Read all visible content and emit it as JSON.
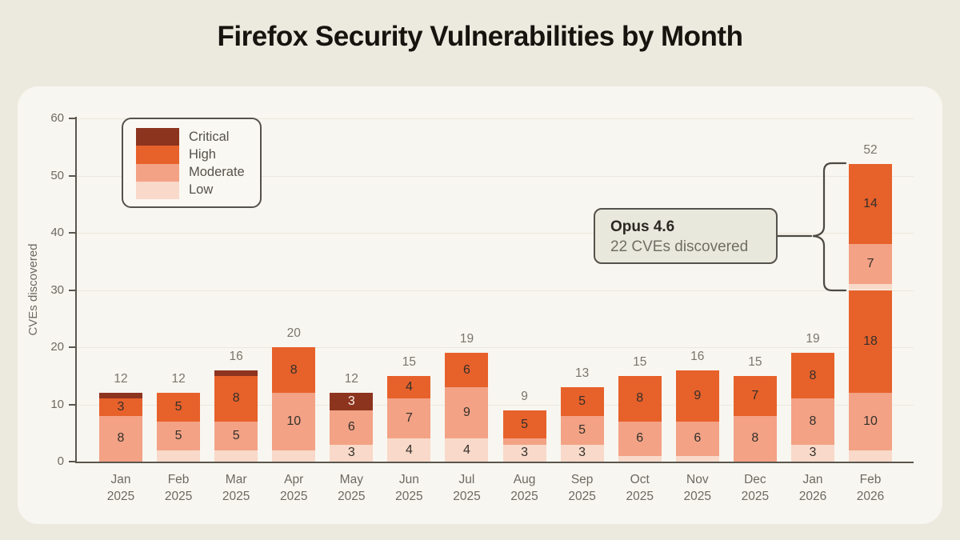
{
  "chart_data": {
    "type": "bar",
    "stacked": true,
    "title": "Firefox Security Vulnerabilities by Month",
    "ylabel": "CVEs discovered",
    "ylim": [
      0,
      60
    ],
    "yticks": [
      0,
      10,
      20,
      30,
      40,
      50,
      60
    ],
    "grid": "horizontal",
    "legend_position": "top-left",
    "label_threshold": 3,
    "severity_colors": {
      "critical": "#8D341F",
      "high": "#E7612B",
      "moderate": "#F3A285",
      "low": "#F9D9C9"
    },
    "legend": [
      {
        "name": "Critical",
        "severity": "critical"
      },
      {
        "name": "High",
        "severity": "high"
      },
      {
        "name": "Moderate",
        "severity": "moderate"
      },
      {
        "name": "Low",
        "severity": "low"
      }
    ],
    "months": [
      {
        "month": "Jan",
        "year": "2025",
        "total": 12,
        "segments": [
          {
            "severity": "moderate",
            "value": 8
          },
          {
            "severity": "high",
            "value": 3
          },
          {
            "severity": "critical",
            "value": 1
          }
        ]
      },
      {
        "month": "Feb",
        "year": "2025",
        "total": 12,
        "segments": [
          {
            "severity": "low",
            "value": 2
          },
          {
            "severity": "moderate",
            "value": 5
          },
          {
            "severity": "high",
            "value": 5
          }
        ]
      },
      {
        "month": "Mar",
        "year": "2025",
        "total": 16,
        "segments": [
          {
            "severity": "low",
            "value": 2
          },
          {
            "severity": "moderate",
            "value": 5
          },
          {
            "severity": "high",
            "value": 8
          },
          {
            "severity": "critical",
            "value": 1
          }
        ]
      },
      {
        "month": "Apr",
        "year": "2025",
        "total": 20,
        "segments": [
          {
            "severity": "low",
            "value": 2
          },
          {
            "severity": "moderate",
            "value": 10
          },
          {
            "severity": "high",
            "value": 8
          }
        ]
      },
      {
        "month": "May",
        "year": "2025",
        "total": 12,
        "segments": [
          {
            "severity": "low",
            "value": 3
          },
          {
            "severity": "moderate",
            "value": 6
          },
          {
            "severity": "critical",
            "value": 3
          }
        ]
      },
      {
        "month": "Jun",
        "year": "2025",
        "total": 15,
        "segments": [
          {
            "severity": "low",
            "value": 4
          },
          {
            "severity": "moderate",
            "value": 7
          },
          {
            "severity": "high",
            "value": 4
          }
        ]
      },
      {
        "month": "Jul",
        "year": "2025",
        "total": 19,
        "segments": [
          {
            "severity": "low",
            "value": 4
          },
          {
            "severity": "moderate",
            "value": 9
          },
          {
            "severity": "high",
            "value": 6
          }
        ]
      },
      {
        "month": "Aug",
        "year": "2025",
        "total": 9,
        "segments": [
          {
            "severity": "low",
            "value": 3
          },
          {
            "severity": "moderate",
            "value": 1
          },
          {
            "severity": "high",
            "value": 5
          }
        ]
      },
      {
        "month": "Sep",
        "year": "2025",
        "total": 13,
        "segments": [
          {
            "severity": "low",
            "value": 3
          },
          {
            "severity": "moderate",
            "value": 5
          },
          {
            "severity": "high",
            "value": 5
          }
        ]
      },
      {
        "month": "Oct",
        "year": "2025",
        "total": 15,
        "segments": [
          {
            "severity": "low",
            "value": 1
          },
          {
            "severity": "moderate",
            "value": 6
          },
          {
            "severity": "high",
            "value": 8
          }
        ]
      },
      {
        "month": "Nov",
        "year": "2025",
        "total": 16,
        "segments": [
          {
            "severity": "low",
            "value": 1
          },
          {
            "severity": "moderate",
            "value": 6
          },
          {
            "severity": "high",
            "value": 9
          }
        ]
      },
      {
        "month": "Dec",
        "year": "2025",
        "total": 15,
        "segments": [
          {
            "severity": "moderate",
            "value": 8
          },
          {
            "severity": "high",
            "value": 7
          }
        ]
      },
      {
        "month": "Jan",
        "year": "2026",
        "total": 19,
        "segments": [
          {
            "severity": "low",
            "value": 3
          },
          {
            "severity": "moderate",
            "value": 8
          },
          {
            "severity": "high",
            "value": 8
          }
        ]
      },
      {
        "month": "Feb",
        "year": "2026",
        "total": 52,
        "segments": [
          {
            "severity": "low",
            "value": 2
          },
          {
            "severity": "moderate",
            "value": 10
          },
          {
            "severity": "high",
            "value": 18
          },
          {
            "severity": "low",
            "value": 1
          },
          {
            "severity": "moderate",
            "value": 7
          },
          {
            "severity": "high",
            "value": 14
          }
        ]
      }
    ],
    "annotation": {
      "title": "Opus 4.6",
      "subtitle": "22 CVEs discovered",
      "bracket_from_value": 30,
      "bracket_to_value": 52,
      "target_month": "Feb 2026"
    }
  }
}
